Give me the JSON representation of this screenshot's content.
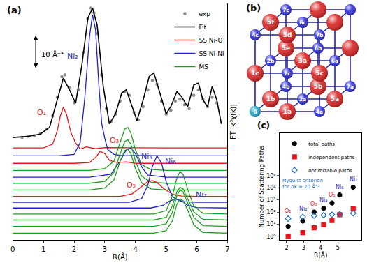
{
  "chart_data": [
    {
      "type": "line",
      "panel_label": "(a)",
      "x_label": "R(Å)",
      "y_label": "FT |k³χ(k)|",
      "xlim": [
        0,
        7
      ],
      "xticks": [
        0,
        1,
        2,
        3,
        4,
        5,
        6,
        7
      ],
      "ylim": [
        0,
        63
      ],
      "tick_labels": "x",
      "legend": "upper right",
      "scale_bar": {
        "label": "10 Å⁻⁴",
        "x": 0.75,
        "y": [
          44.5,
          54.5
        ]
      },
      "series": [
        {
          "name": "exp",
          "type": "scatter",
          "marker": "circle",
          "color": "#8c8c8c",
          "x": [
            0.3,
            0.5,
            0.7,
            0.9,
            1.1,
            1.3,
            1.45,
            1.6,
            1.7,
            1.85,
            2.0,
            2.15,
            2.3,
            2.45,
            2.55,
            2.65,
            2.75,
            2.9,
            3.05,
            3.2,
            3.35,
            3.5,
            3.65,
            3.8,
            3.95,
            4.1,
            4.25,
            4.4,
            4.55,
            4.7,
            4.85,
            5.0,
            5.15,
            5.3,
            5.45,
            5.6,
            5.75,
            5.9,
            6.05,
            6.2,
            6.35,
            6.5,
            6.65
          ],
          "values": [
            27.3,
            27.6,
            27.8,
            28.3,
            29.5,
            33,
            38,
            43.5,
            44,
            40.5,
            36.5,
            40,
            50,
            59,
            61.8,
            60.5,
            55,
            44,
            35,
            31.5,
            33.5,
            37,
            39.5,
            38.5,
            34,
            32,
            35.5,
            40,
            42.5,
            41.5,
            37,
            33.5,
            34.5,
            37,
            37.5,
            36,
            35,
            38.5,
            40,
            37.5,
            35.5,
            38,
            36.5
          ]
        },
        {
          "name": "Fit",
          "type": "line",
          "color": "#000000",
          "x": [
            0.0,
            0.5,
            0.9,
            1.2,
            1.45,
            1.65,
            1.85,
            2.05,
            2.25,
            2.45,
            2.6,
            2.75,
            2.95,
            3.15,
            3.35,
            3.55,
            3.7,
            3.9,
            4.05,
            4.25,
            4.45,
            4.6,
            4.8,
            5.0,
            5.15,
            5.35,
            5.5,
            5.7,
            5.9,
            6.05,
            6.2,
            6.35,
            6.5,
            6.65,
            6.8
          ],
          "values": [
            27.3,
            27.6,
            28.2,
            30.0,
            37.3,
            43.1,
            40.0,
            36.4,
            46.4,
            59.1,
            61.8,
            57.3,
            40.9,
            30.9,
            33.6,
            39.1,
            40.0,
            35.5,
            31.8,
            37.3,
            43.6,
            44.5,
            39.1,
            33.6,
            35.5,
            39.5,
            38.2,
            35.5,
            41.3,
            41.8,
            37.3,
            35.5,
            40.9,
            37.3,
            30.9
          ]
        },
        {
          "name": "SS Ni-O",
          "type": "line",
          "color": "#e8141b",
          "x": [
            0,
            1.0,
            1.3,
            1.45,
            1.55,
            1.65,
            1.75,
            1.9,
            2.05,
            2.2,
            2.4,
            2.7,
            3.0,
            4.0,
            5.0,
            6.0,
            7.0
          ],
          "values": [
            24.5,
            24.5,
            25.5,
            29,
            33,
            35.4,
            33.5,
            28.5,
            25.8,
            24.2,
            24.8,
            24.3,
            24.6,
            24.5,
            24.5,
            24.5,
            24.5
          ]
        },
        {
          "name": "SS Ni-Ni",
          "type": "line",
          "color": "#1f1fd0",
          "x": [
            0,
            1.5,
            2.0,
            2.2,
            2.35,
            2.5,
            2.6,
            2.7,
            2.8,
            2.9,
            3.0,
            3.1,
            3.3,
            3.6,
            4.0,
            5.0,
            6.0,
            7.0
          ],
          "values": [
            22.4,
            22.4,
            22.8,
            26,
            38,
            54,
            60,
            56,
            42,
            31,
            27,
            24,
            22.8,
            22.4,
            22.5,
            22.4,
            22.4,
            22.4
          ]
        },
        {
          "name": "SS Ni-O",
          "type": "line",
          "color": "#e8141b",
          "x": [
            0,
            2.0,
            2.5,
            2.7,
            2.85,
            3.0,
            3.15,
            3.4,
            3.7,
            4.0,
            5.0,
            6.0,
            7.0
          ],
          "values": [
            20.4,
            20.4,
            20.6,
            22,
            23.6,
            23,
            21.2,
            20.6,
            20.8,
            20.4,
            20.4,
            20.4,
            20.4
          ]
        },
        {
          "name": "MS",
          "type": "line",
          "color": "#1e9e1e",
          "x": [
            0,
            2.5,
            3.0,
            3.3,
            3.5,
            3.65,
            3.75,
            3.85,
            4.0,
            4.2,
            4.5,
            5.0,
            6.0,
            7.0
          ],
          "values": [
            18.5,
            18.5,
            19,
            21,
            26,
            29.5,
            30,
            28.5,
            24,
            20,
            18.8,
            18.5,
            18.5,
            18.5
          ]
        },
        {
          "name": "SS Ni-Ni",
          "type": "line",
          "color": "#1f1fd0",
          "x": [
            0,
            2.5,
            3.2,
            3.5,
            3.7,
            3.85,
            4.0,
            4.2,
            4.4,
            4.7,
            5.0,
            6.0,
            7.0
          ],
          "values": [
            16.7,
            16.7,
            17.5,
            21,
            24,
            24.5,
            23,
            19.5,
            17.3,
            17,
            16.7,
            16.7,
            16.7
          ]
        },
        {
          "name": "MS",
          "type": "line",
          "color": "#1e9e1e",
          "x": [
            0,
            2.5,
            3.0,
            3.3,
            3.5,
            3.65,
            3.75,
            3.85,
            4.0,
            4.2,
            4.5,
            5.0,
            6.0,
            7.0
          ],
          "values": [
            15.1,
            15.1,
            15.6,
            18,
            23,
            26.2,
            26.7,
            25.5,
            21,
            17,
            15.4,
            15.1,
            15.1,
            15.1
          ]
        },
        {
          "name": "MS",
          "type": "line",
          "color": "#1e9e1e",
          "x": [
            0,
            2.5,
            3.0,
            3.3,
            3.5,
            3.65,
            3.75,
            3.85,
            4.0,
            4.2,
            4.5,
            5.0,
            6.0,
            7.0
          ],
          "values": [
            13.3,
            13.3,
            13.8,
            16,
            21,
            23.8,
            24.2,
            23,
            19,
            15.2,
            13.6,
            13.3,
            13.3,
            13.3
          ]
        },
        {
          "name": "SS Ni-O",
          "type": "line",
          "color": "#e8141b",
          "x": [
            0,
            3.5,
            3.9,
            4.2,
            4.4,
            4.55,
            4.7,
            4.9,
            5.2,
            5.5,
            6.0,
            7.0
          ],
          "values": [
            11.6,
            11.6,
            12.3,
            14.2,
            15.5,
            15.8,
            15.3,
            13.8,
            12.2,
            11.7,
            11.6,
            11.6
          ]
        },
        {
          "name": "SS Ni-Ni",
          "type": "line",
          "color": "#1f1fd0",
          "x": [
            0,
            3.8,
            4.2,
            4.4,
            4.55,
            4.7,
            4.85,
            5.0,
            5.2,
            5.5,
            6.0,
            7.0
          ],
          "values": [
            10,
            10,
            11,
            14.5,
            19.5,
            22.4,
            20.5,
            15.5,
            11.5,
            10.2,
            10,
            10
          ]
        },
        {
          "name": "SS Ni-Ni",
          "type": "line",
          "color": "#1f1fd0",
          "x": [
            0,
            4.5,
            4.9,
            5.1,
            5.3,
            5.5,
            5.7,
            6.0,
            7.0
          ],
          "values": [
            8.5,
            8.5,
            9.2,
            10.3,
            10.9,
            10.4,
            9.2,
            8.6,
            8.5
          ]
        },
        {
          "name": "MS",
          "type": "line",
          "color": "#1e9e1e",
          "x": [
            0,
            4.6,
            5.0,
            5.2,
            5.35,
            5.45,
            5.55,
            5.7,
            5.9,
            6.2,
            7.0
          ],
          "values": [
            6.9,
            6.9,
            7.8,
            11.5,
            16.5,
            18.2,
            17.5,
            13.5,
            9,
            7.1,
            6.9
          ]
        },
        {
          "name": "MS",
          "type": "line",
          "color": "#1e9e1e",
          "x": [
            0,
            4.6,
            5.0,
            5.2,
            5.35,
            5.45,
            5.55,
            5.7,
            5.9,
            6.2,
            7.0
          ],
          "values": [
            5.3,
            5.3,
            6,
            9,
            12.8,
            14,
            13.6,
            11,
            7.5,
            5.5,
            5.3
          ]
        },
        {
          "name": "MS",
          "type": "line",
          "color": "#1e9e1e",
          "x": [
            0,
            4.6,
            5.0,
            5.2,
            5.35,
            5.45,
            5.55,
            5.7,
            5.9,
            6.2,
            7.0
          ],
          "values": [
            3.6,
            3.6,
            4.3,
            7.3,
            11.8,
            13.3,
            12.8,
            10,
            6,
            3.8,
            3.6
          ]
        },
        {
          "name": "MS",
          "type": "line",
          "color": "#1e9e1e",
          "x": [
            0,
            4.6,
            5.0,
            5.2,
            5.35,
            5.45,
            5.55,
            5.7,
            5.9,
            6.2,
            7.0
          ],
          "values": [
            1.8,
            1.8,
            2.5,
            5,
            9.5,
            10.9,
            10.5,
            8,
            4,
            2,
            1.8
          ]
        }
      ],
      "annotations": [
        {
          "text": "O₁",
          "x": 0.95,
          "y": 34,
          "color": "#e8141b"
        },
        {
          "text": "Ni₂",
          "x": 1.95,
          "y": 49,
          "color": "#2a2ad0"
        },
        {
          "text": "O₃",
          "x": 3.3,
          "y": 26.5,
          "color": "#e8141b"
        },
        {
          "text": "Ni₄",
          "x": 4.37,
          "y": 22.2,
          "color": "#2a2ad0"
        },
        {
          "text": "O₅",
          "x": 3.85,
          "y": 14.6,
          "color": "#e8141b"
        },
        {
          "text": "Ni₆",
          "x": 5.15,
          "y": 21,
          "color": "#2a2ad0"
        },
        {
          "text": "Ni₇",
          "x": 6.15,
          "y": 12,
          "color": "#2a2ad0"
        }
      ]
    },
    {
      "type": "scatter",
      "panel_label": "(c)",
      "x_label": "R(Å)",
      "y_label": "Number of Scattering Paths",
      "log": "y",
      "legend": "upper left",
      "xlim": [
        1.6,
        6.4
      ],
      "xticks": [
        2,
        3,
        4,
        5
      ],
      "ylim": [
        0.5,
        300000000
      ],
      "yticks": [
        {
          "value": 1,
          "label": "10⁰"
        },
        {
          "value": 10,
          "label": "10¹"
        },
        {
          "value": 100,
          "label": "10²"
        },
        {
          "value": 1000,
          "label": "10³"
        },
        {
          "value": 10000,
          "label": "10⁴"
        },
        {
          "value": 100000,
          "label": "10⁵"
        }
      ],
      "x": [
        2.09,
        2.95,
        3.61,
        4.17,
        4.66,
        5.11,
        5.9
      ],
      "point_labels": [
        {
          "text": "O₁",
          "color": "#e8141b"
        },
        {
          "text": "Ni₂",
          "color": "#2a2ad0"
        },
        {
          "text": "O₃",
          "color": "#e8141b"
        },
        {
          "text": "Ni₄",
          "color": "#2a2ad0"
        },
        {
          "text": "O₅",
          "color": "#e8141b"
        },
        {
          "text": "Ni₆",
          "color": "#2a2ad0"
        },
        {
          "text": "Ni₇",
          "color": "#2a2ad0"
        }
      ],
      "series": [
        {
          "name": "total paths",
          "marker": "circle",
          "color": "#000000",
          "values": [
            6.5,
            18,
            100,
            200,
            550,
            2500,
            11000
          ]
        },
        {
          "name": "independent paths",
          "marker": "square",
          "color": "#e8141b",
          "values": [
            1,
            2,
            5,
            9,
            20,
            60,
            180
          ]
        },
        {
          "name": "optimizable paths",
          "marker": "diamond-open",
          "color": "#1f6fbf",
          "values": [
            28,
            40,
            50,
            55,
            60,
            65,
            80
          ]
        }
      ],
      "note": {
        "lines": [
          "Nyquist criterion",
          "for Δk = 20 Å⁻¹"
        ],
        "color": "#1f6fbf"
      }
    }
  ],
  "diagram": {
    "panel_label": "(b)",
    "atoms": [
      {
        "label": "0",
        "element": "Ni",
        "site": [
          0,
          0,
          0
        ],
        "color": "#19a0c8"
      },
      {
        "label": "1a",
        "element": "O",
        "site": [
          1,
          0,
          0
        ],
        "color": "#d81e1e"
      },
      {
        "label": "1b",
        "element": "O",
        "site": [
          0,
          1,
          0
        ],
        "color": "#d81e1e"
      },
      {
        "label": "1c",
        "element": "O",
        "site": [
          0,
          0,
          1
        ],
        "color": "#d81e1e"
      },
      {
        "label": "2a",
        "element": "Ni",
        "site": [
          1,
          1,
          0
        ],
        "color": "#2a2ad8"
      },
      {
        "label": "2b",
        "element": "Ni",
        "site": [
          0,
          1,
          1
        ],
        "color": "#2a2ad8"
      },
      {
        "label": "2c",
        "element": "Ni",
        "site": [
          1,
          0,
          1
        ],
        "color": "#2a2ad8"
      },
      {
        "label": "3a",
        "element": "O",
        "site": [
          1,
          1,
          1
        ],
        "color": "#d81e1e"
      },
      {
        "label": "4a",
        "element": "Ni",
        "site": [
          2,
          0,
          0
        ],
        "color": "#2a2ad8"
      },
      {
        "label": "4b",
        "element": "Ni",
        "site": [
          0,
          2,
          0
        ],
        "color": "#2a2ad8"
      },
      {
        "label": "4c",
        "element": "Ni",
        "site": [
          0,
          0,
          2
        ],
        "color": "#2a2ad8"
      },
      {
        "label": "5a",
        "element": "O",
        "site": [
          2,
          1,
          0
        ],
        "color": "#d81e1e"
      },
      {
        "label": "5b",
        "element": "O",
        "site": [
          1,
          2,
          0
        ],
        "color": "#d81e1e"
      },
      {
        "label": "5c",
        "element": "O",
        "site": [
          2,
          0,
          1
        ],
        "color": "#d81e1e"
      },
      {
        "label": "5d",
        "element": "O",
        "site": [
          1,
          0,
          2
        ],
        "color": "#d81e1e"
      },
      {
        "label": "5e",
        "element": "O",
        "site": [
          0,
          2,
          1
        ],
        "color": "#d81e1e"
      },
      {
        "label": "5f",
        "element": "O",
        "site": [
          0,
          1,
          2
        ],
        "color": "#d81e1e"
      },
      {
        "label": "6a",
        "element": "Ni",
        "site": [
          2,
          1,
          1
        ],
        "color": "#2a2ad8"
      },
      {
        "label": "6b",
        "element": "Ni",
        "site": [
          1,
          2,
          1
        ],
        "color": "#2a2ad8"
      },
      {
        "label": "6c",
        "element": "Ni",
        "site": [
          1,
          1,
          2
        ],
        "color": "#2a2ad8"
      },
      {
        "label": "7a",
        "element": "Ni",
        "site": [
          2,
          2,
          0
        ],
        "color": "#2a2ad8"
      },
      {
        "label": "7b",
        "element": "Ni",
        "site": [
          2,
          0,
          2
        ],
        "color": "#2a2ad8"
      },
      {
        "label": "7c",
        "element": "Ni",
        "site": [
          0,
          2,
          2
        ],
        "color": "#2a2ad8"
      },
      {
        "label": null,
        "element": "O",
        "site": [
          2,
          2,
          1
        ],
        "color": "#d81e1e"
      },
      {
        "label": null,
        "element": "O",
        "site": [
          2,
          1,
          2
        ],
        "color": "#d81e1e"
      },
      {
        "label": null,
        "element": "O",
        "site": [
          1,
          2,
          2
        ],
        "color": "#d81e1e"
      },
      {
        "label": null,
        "element": "Ni",
        "site": [
          2,
          2,
          2
        ],
        "color": "#2a2ad8"
      }
    ]
  }
}
